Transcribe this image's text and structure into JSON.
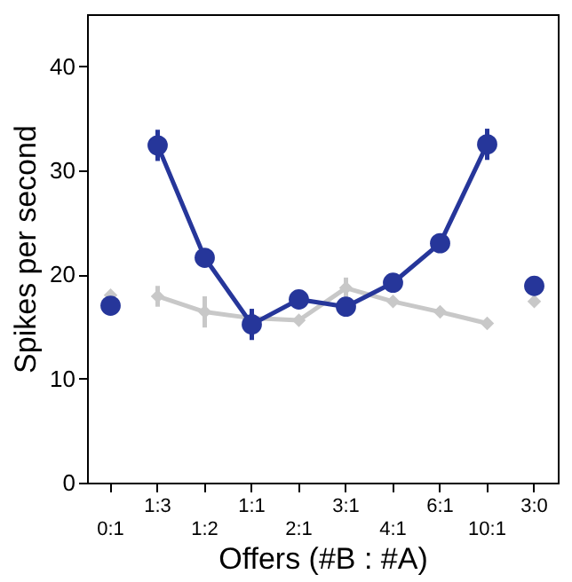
{
  "chart_data": {
    "type": "line",
    "xlabel": "Offers (#B : #A)",
    "ylabel": "Spikes per second",
    "categories": [
      "0:1",
      "1:3",
      "1:2",
      "1:1",
      "2:1",
      "3:1",
      "4:1",
      "6:1",
      "10:1",
      "3:0"
    ],
    "ylim": [
      0,
      45
    ],
    "yticks": [
      0,
      10,
      20,
      30,
      40
    ],
    "grid": false,
    "series": [
      {
        "color": "#c8c8c8",
        "marker": "diamond",
        "values": [
          null,
          17.9,
          16.4,
          15.8,
          15.6,
          18.7,
          17.4,
          16.4,
          15.3,
          null
        ],
        "errors": [
          null,
          1,
          1.5,
          null,
          null,
          1,
          null,
          null,
          null,
          null
        ]
      },
      {
        "type": "scatter",
        "color": "#c8c8c8",
        "marker": "diamond",
        "values": [
          18.0,
          null,
          null,
          null,
          null,
          null,
          null,
          null,
          null,
          17.4
        ]
      },
      {
        "color": "#26369a",
        "marker": "circle",
        "values": [
          null,
          32.4,
          21.6,
          15.2,
          17.6,
          16.9,
          19.2,
          23.0,
          32.5,
          null
        ],
        "errors": [
          null,
          1.5,
          null,
          1.5,
          null,
          null,
          null,
          null,
          1.5,
          null
        ]
      },
      {
        "type": "scatter",
        "color": "#26369a",
        "marker": "circle",
        "values": [
          17.0,
          null,
          null,
          null,
          null,
          null,
          null,
          null,
          null,
          18.9
        ]
      }
    ]
  }
}
